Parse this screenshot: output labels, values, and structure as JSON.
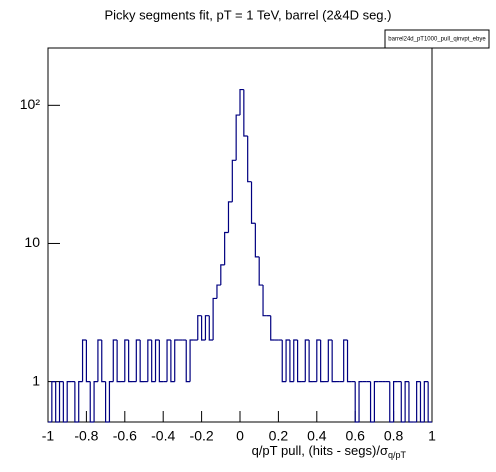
{
  "chart_data": {
    "type": "histogram",
    "title": "Picky segments fit, pT = 1 TeV, barrel (2&4D seg.)",
    "stat_box": "barrel24d_pT1000_pull_qinvpt_ebye",
    "x_label": "q/pT pull, (hits - segs)/σ",
    "x_label_sub": "q/pT",
    "color": "#000080",
    "log_y": true,
    "xlim": [
      -1,
      1
    ],
    "xticks": [
      -1,
      -0.8,
      -0.6,
      -0.4,
      -0.2,
      0,
      0.2,
      0.4,
      0.6,
      0.8,
      1
    ],
    "ylim": [
      0.51,
      260
    ],
    "yticks": [
      1,
      10,
      {
        "value": 100,
        "label": "10²"
      }
    ],
    "bins": [
      -1,
      -0.98,
      -0.96,
      -0.94,
      -0.92,
      -0.9,
      -0.88,
      -0.86,
      -0.84,
      -0.82,
      -0.8,
      -0.78,
      -0.76,
      -0.74,
      -0.72,
      -0.7,
      -0.68,
      -0.66,
      -0.64,
      -0.62,
      -0.6,
      -0.58,
      -0.56,
      -0.54,
      -0.52,
      -0.5,
      -0.48,
      -0.46,
      -0.44,
      -0.42,
      -0.4,
      -0.38,
      -0.36,
      -0.34,
      -0.32,
      -0.3,
      -0.28,
      -0.26,
      -0.24,
      -0.22,
      -0.2,
      -0.18,
      -0.16,
      -0.14,
      -0.12,
      -0.1,
      -0.08,
      -0.06,
      -0.04,
      -0.02,
      0,
      0.02,
      0.04,
      0.06,
      0.08,
      0.1,
      0.12,
      0.14,
      0.16,
      0.18,
      0.2,
      0.22,
      0.24,
      0.26,
      0.28,
      0.3,
      0.32,
      0.34,
      0.36,
      0.38,
      0.4,
      0.42,
      0.44,
      0.46,
      0.48,
      0.5,
      0.52,
      0.54,
      0.56,
      0.58,
      0.6,
      0.62,
      0.64,
      0.66,
      0.68,
      0.7,
      0.72,
      0.74,
      0.76,
      0.78,
      0.8,
      0.82,
      0.84,
      0.86,
      0.88,
      0.9,
      0.92,
      0.94,
      0.96,
      0.98,
      1
    ],
    "values": [
      0,
      1,
      0,
      1,
      0,
      1,
      1,
      0,
      1,
      2,
      1,
      0,
      1,
      2,
      1,
      0,
      1,
      2,
      1,
      1,
      2,
      1,
      1,
      2,
      1,
      1,
      2,
      1,
      2,
      1,
      1,
      2,
      1,
      2,
      2,
      2,
      1,
      2,
      2,
      3,
      2,
      3,
      2,
      4,
      5,
      7,
      12,
      20,
      40,
      85,
      130,
      60,
      28,
      14,
      8,
      5,
      3,
      3,
      2,
      2,
      2,
      1,
      2,
      1,
      2,
      1,
      1,
      2,
      1,
      1,
      2,
      1,
      1,
      2,
      1,
      1,
      1,
      2,
      1,
      1,
      0,
      1,
      1,
      1,
      0,
      1,
      1,
      1,
      1,
      0,
      1,
      1,
      0,
      1,
      0,
      0,
      1,
      0,
      1,
      0
    ]
  }
}
